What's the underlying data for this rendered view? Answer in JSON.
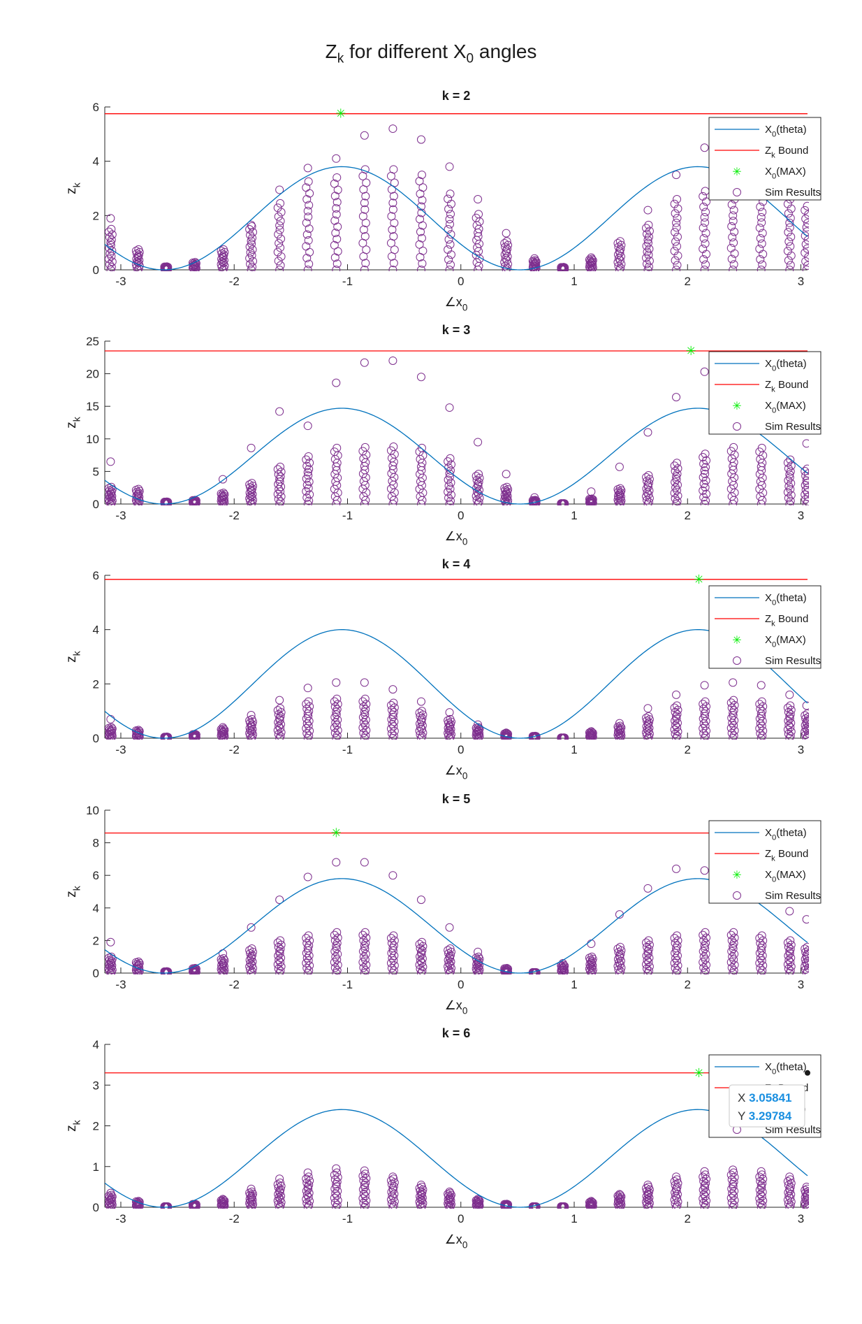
{
  "figure": {
    "title": "Z",
    "title_sub1": "k",
    "title_mid": " for different X",
    "title_sub2": "0",
    "title_end": " angles"
  },
  "colors": {
    "theta_line": "#0072BD",
    "bound_line": "#ff0000",
    "max_marker": "#00ee00",
    "sim_marker": "#7E2F8E",
    "axis": "#262626"
  },
  "legend_entries": [
    {
      "label": "X",
      "sub": "0",
      "suffix": "(theta)",
      "style": "line-theta"
    },
    {
      "label": "Z",
      "sub": "k",
      "suffix": " Bound",
      "style": "line-bound"
    },
    {
      "label": "X",
      "sub": "0",
      "suffix": "(MAX)",
      "style": "star"
    },
    {
      "label": "Sim Results",
      "sub": "",
      "suffix": "",
      "style": "circle"
    }
  ],
  "datatip": {
    "x_label": "X",
    "x_value": "3.05841",
    "y_label": "Y",
    "y_value": "3.29784"
  },
  "chart_data": [
    {
      "type": "scatter",
      "title": "k = 2",
      "xlabel": "∠x",
      "xlabel_sub": "0",
      "ylabel": "z",
      "ylabel_sub": "k",
      "xlim": [
        -3.1416,
        3.0584
      ],
      "ylim": [
        0,
        6
      ],
      "xticks": [
        -3,
        -2,
        -1,
        0,
        1,
        2,
        3
      ],
      "yticks": [
        0,
        2,
        4,
        6
      ],
      "bound": 5.75,
      "theta_amplitude": 3.8,
      "max_point": {
        "x": -1.06,
        "y": 5.75
      },
      "sim_max": [
        1.9,
        0.75,
        0.12,
        0.28,
        0.75,
        1.65,
        2.95,
        3.75,
        4.1,
        4.95,
        5.2,
        4.8,
        3.8,
        2.6,
        1.35,
        0.42,
        0.1,
        0.45,
        1.05,
        2.2,
        3.5,
        4.5,
        3.75,
        3.6,
        3.0,
        2.3
      ],
      "sim_stack": [
        1.5,
        0.75,
        0.12,
        0.28,
        0.75,
        1.6,
        2.45,
        3.25,
        3.4,
        3.7,
        3.7,
        3.5,
        2.8,
        2.05,
        1.05,
        0.35,
        0.1,
        0.4,
        1.05,
        1.65,
        2.6,
        2.9,
        3.0,
        2.9,
        2.6,
        2.35
      ],
      "datatip": false
    },
    {
      "type": "scatter",
      "title": "k = 3",
      "xlabel": "∠x",
      "xlabel_sub": "0",
      "ylabel": "z",
      "ylabel_sub": "k",
      "xlim": [
        -3.1416,
        3.0584
      ],
      "ylim": [
        0,
        25
      ],
      "xticks": [
        -3,
        -2,
        -1,
        0,
        1,
        2,
        3
      ],
      "yticks": [
        0,
        5,
        10,
        15,
        20,
        25
      ],
      "bound": 23.5,
      "theta_amplitude": 14.7,
      "max_point": {
        "x": 2.03,
        "y": 23.5
      },
      "sim_max": [
        6.5,
        2.3,
        0.35,
        0.6,
        3.8,
        8.6,
        14.2,
        12.0,
        18.6,
        21.7,
        22.0,
        19.5,
        14.8,
        9.5,
        4.6,
        1.0,
        0.1,
        1.9,
        5.7,
        11.0,
        16.4,
        20.3,
        14.6,
        14.0,
        12.0,
        9.3
      ],
      "sim_stack": [
        2.6,
        2.3,
        0.35,
        0.6,
        1.7,
        3.2,
        5.7,
        7.3,
        8.6,
        8.7,
        8.8,
        8.6,
        7.0,
        4.6,
        2.6,
        0.6,
        0.1,
        0.8,
        2.4,
        4.4,
        6.3,
        7.7,
        8.7,
        8.6,
        6.8,
        5.4
      ],
      "datatip": false
    },
    {
      "type": "scatter",
      "title": "k = 4",
      "xlabel": "∠x",
      "xlabel_sub": "0",
      "ylabel": "z",
      "ylabel_sub": "k",
      "xlim": [
        -3.1416,
        3.0584
      ],
      "ylim": [
        0,
        6
      ],
      "xticks": [
        -3,
        -2,
        -1,
        0,
        1,
        2,
        3
      ],
      "yticks": [
        0,
        2,
        4,
        6
      ],
      "bound": 5.85,
      "theta_amplitude": 4.0,
      "max_point": {
        "x": 2.1,
        "y": 5.85
      },
      "sim_max": [
        0.7,
        0.3,
        0.05,
        0.15,
        0.4,
        0.85,
        1.4,
        1.85,
        2.05,
        2.05,
        1.8,
        1.35,
        0.95,
        0.5,
        0.2,
        0.08,
        0.02,
        0.25,
        0.55,
        1.1,
        1.6,
        1.95,
        2.05,
        1.95,
        1.6,
        1.2
      ],
      "sim_stack": [
        0.4,
        0.3,
        0.05,
        0.15,
        0.35,
        0.7,
        1.1,
        1.35,
        1.45,
        1.45,
        1.3,
        1.0,
        0.7,
        0.4,
        0.18,
        0.08,
        0.02,
        0.22,
        0.45,
        0.8,
        1.2,
        1.35,
        1.4,
        1.35,
        1.2,
        0.9
      ],
      "datatip": false
    },
    {
      "type": "scatter",
      "title": "k = 5",
      "xlabel": "∠x",
      "xlabel_sub": "0",
      "ylabel": "z",
      "ylabel_sub": "k",
      "xlim": [
        -3.1416,
        3.0584
      ],
      "ylim": [
        0,
        10
      ],
      "xticks": [
        -3,
        -2,
        -1,
        0,
        1,
        2,
        3
      ],
      "yticks": [
        0,
        2,
        4,
        6,
        8,
        10
      ],
      "bound": 8.6,
      "theta_amplitude": 5.8,
      "max_point": {
        "x": -1.1,
        "y": 8.6
      },
      "sim_max": [
        1.9,
        0.7,
        0.1,
        0.3,
        1.2,
        2.8,
        4.5,
        5.9,
        6.8,
        6.8,
        6.0,
        4.5,
        2.8,
        1.3,
        0.3,
        0.05,
        0.6,
        1.8,
        3.6,
        5.2,
        6.4,
        6.3,
        5.0,
        4.6,
        3.8,
        3.3
      ],
      "sim_stack": [
        1.0,
        0.7,
        0.1,
        0.3,
        0.9,
        1.5,
        2.0,
        2.3,
        2.5,
        2.5,
        2.3,
        1.9,
        1.5,
        1.0,
        0.3,
        0.05,
        0.5,
        1.0,
        1.6,
        2.0,
        2.3,
        2.5,
        2.5,
        2.3,
        2.0,
        1.6
      ],
      "datatip": false
    },
    {
      "type": "scatter",
      "title": "k = 6",
      "xlabel": "∠x",
      "xlabel_sub": "0",
      "ylabel": "z",
      "ylabel_sub": "k",
      "xlim": [
        -3.1416,
        3.0584
      ],
      "ylim": [
        0,
        4
      ],
      "xticks": [
        -3,
        -2,
        -1,
        0,
        1,
        2,
        3
      ],
      "yticks": [
        0,
        1,
        2,
        3,
        4
      ],
      "bound": 3.3,
      "theta_amplitude": 2.4,
      "max_point": {
        "x": 2.1,
        "y": 3.3
      },
      "sim_max": [
        0.35,
        0.15,
        0.02,
        0.08,
        0.2,
        0.45,
        0.7,
        0.85,
        0.95,
        0.9,
        0.75,
        0.55,
        0.38,
        0.2,
        0.08,
        0.02,
        0.02,
        0.15,
        0.32,
        0.55,
        0.75,
        0.88,
        0.92,
        0.88,
        0.75,
        0.5
      ],
      "sim_stack": [
        0.3,
        0.15,
        0.02,
        0.08,
        0.18,
        0.38,
        0.6,
        0.75,
        0.85,
        0.82,
        0.7,
        0.5,
        0.35,
        0.18,
        0.08,
        0.02,
        0.02,
        0.13,
        0.3,
        0.5,
        0.68,
        0.8,
        0.85,
        0.8,
        0.68,
        0.45
      ],
      "datatip": true
    }
  ]
}
